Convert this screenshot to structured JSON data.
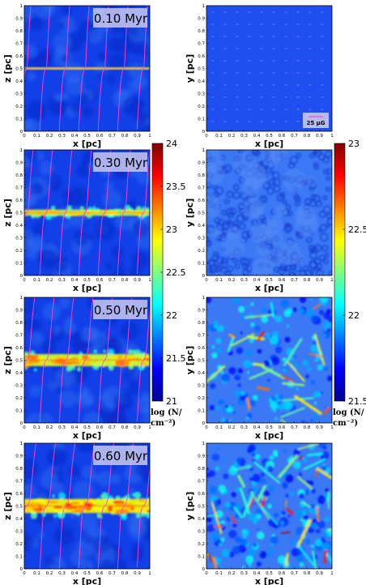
{
  "chart_data": [
    {
      "type": "heatmap",
      "view": "edge-on",
      "time_label": "0.10 Myr",
      "xlabel": "x [pc]",
      "ylabel": "z [pc]",
      "xticks": [
        "0",
        "0.1",
        "0.2",
        "0.3",
        "0.4",
        "0.5",
        "0.6",
        "0.7",
        "0.8",
        "0.9",
        "1"
      ],
      "yticks": [
        "0",
        "0.1",
        "0.2",
        "0.3",
        "0.4",
        "0.5",
        "0.6",
        "0.7",
        "0.8",
        "0.9",
        "1"
      ],
      "xlim": [
        0,
        1
      ],
      "ylim": [
        0,
        1
      ],
      "layer_center_z": 0.5,
      "layer_half_thickness": 0.005,
      "intensity": 0.0
    },
    {
      "type": "heatmap",
      "view": "face-on",
      "xlabel": "x [pc]",
      "ylabel": "y [pc]",
      "xticks": [
        "0",
        "0.1",
        "0.2",
        "0.3",
        "0.4",
        "0.5",
        "0.6",
        "0.7",
        "0.8",
        "0.9",
        "1"
      ],
      "yticks": [
        "0",
        "0.1",
        "0.2",
        "0.3",
        "0.4",
        "0.5",
        "0.6",
        "0.7",
        "0.8",
        "0.9",
        "1"
      ],
      "xlim": [
        0,
        1
      ],
      "ylim": [
        0,
        1
      ],
      "scale_bar_label": "25 μG",
      "intensity": 0.0
    },
    {
      "type": "heatmap",
      "view": "edge-on",
      "time_label": "0.30 Myr",
      "xlabel": "x [pc]",
      "ylabel": "z [pc]",
      "xticks": [
        "0",
        "0.1",
        "0.2",
        "0.3",
        "0.4",
        "0.5",
        "0.6",
        "0.7",
        "0.8",
        "0.9",
        "1"
      ],
      "yticks": [
        "0",
        "0.1",
        "0.2",
        "0.3",
        "0.4",
        "0.5",
        "0.6",
        "0.7",
        "0.8",
        "0.9",
        "1"
      ],
      "xlim": [
        0,
        1
      ],
      "ylim": [
        0,
        1
      ],
      "layer_center_z": 0.5,
      "layer_half_thickness": 0.03,
      "intensity": 0.35
    },
    {
      "type": "heatmap",
      "view": "face-on",
      "xlabel": "x [pc]",
      "ylabel": "y [pc]",
      "xticks": [
        "0",
        "0.1",
        "0.2",
        "0.3",
        "0.4",
        "0.5",
        "0.6",
        "0.7",
        "0.8",
        "0.9",
        "1"
      ],
      "yticks": [
        "0",
        "0.1",
        "0.2",
        "0.3",
        "0.4",
        "0.5",
        "0.6",
        "0.7",
        "0.8",
        "0.9",
        "1"
      ],
      "xlim": [
        0,
        1
      ],
      "ylim": [
        0,
        1
      ],
      "intensity": 0.3
    },
    {
      "type": "heatmap",
      "view": "edge-on",
      "time_label": "0.50 Myr",
      "xlabel": "x [pc]",
      "ylabel": "z [pc]",
      "xticks": [
        "0",
        "0.1",
        "0.2",
        "0.3",
        "0.4",
        "0.5",
        "0.6",
        "0.7",
        "0.8",
        "0.9",
        "1"
      ],
      "yticks": [
        "0",
        "0.1",
        "0.2",
        "0.3",
        "0.4",
        "0.5",
        "0.6",
        "0.7",
        "0.8",
        "0.9",
        "1"
      ],
      "xlim": [
        0,
        1
      ],
      "ylim": [
        0,
        1
      ],
      "layer_center_z": 0.5,
      "layer_half_thickness": 0.06,
      "intensity": 0.6
    },
    {
      "type": "heatmap",
      "view": "face-on",
      "xlabel": "x [pc]",
      "ylabel": "y [pc]",
      "xticks": [
        "0",
        "0.1",
        "0.2",
        "0.3",
        "0.4",
        "0.5",
        "0.6",
        "0.7",
        "0.8",
        "0.9",
        "1"
      ],
      "yticks": [
        "0",
        "0.1",
        "0.2",
        "0.3",
        "0.4",
        "0.5",
        "0.6",
        "0.7",
        "0.8",
        "0.9",
        "1"
      ],
      "xlim": [
        0,
        1
      ],
      "ylim": [
        0,
        1
      ],
      "intensity": 0.6
    },
    {
      "type": "heatmap",
      "view": "edge-on",
      "time_label": "0.60 Myr",
      "xlabel": "x [pc]",
      "ylabel": "z [pc]",
      "xticks": [
        "0",
        "0.1",
        "0.2",
        "0.3",
        "0.4",
        "0.5",
        "0.6",
        "0.7",
        "0.8",
        "0.9",
        "1"
      ],
      "yticks": [
        "0",
        "0.1",
        "0.2",
        "0.3",
        "0.4",
        "0.5",
        "0.6",
        "0.7",
        "0.8",
        "0.9",
        "1"
      ],
      "xlim": [
        0,
        1
      ],
      "ylim": [
        0,
        1
      ],
      "layer_center_z": 0.5,
      "layer_half_thickness": 0.07,
      "intensity": 0.8
    },
    {
      "type": "heatmap",
      "view": "face-on",
      "xlabel": "x [pc]",
      "ylabel": "y [pc]",
      "xticks": [
        "0",
        "0.1",
        "0.2",
        "0.3",
        "0.4",
        "0.5",
        "0.6",
        "0.7",
        "0.8",
        "0.9",
        "1"
      ],
      "yticks": [
        "0",
        "0.1",
        "0.2",
        "0.3",
        "0.4",
        "0.5",
        "0.6",
        "0.7",
        "0.8",
        "0.9",
        "1"
      ],
      "xlim": [
        0,
        1
      ],
      "ylim": [
        0,
        1
      ],
      "intensity": 0.9
    }
  ],
  "colorbars": [
    {
      "ticks": [
        "24",
        "23.5",
        "23",
        "22.5",
        "22",
        "21.5",
        "21"
      ],
      "range": [
        21,
        24
      ],
      "title_line1": "log (N/",
      "title_line2": "cm⁻²)",
      "colormap": "jet"
    },
    {
      "ticks": [
        "23",
        "22.5",
        "22",
        "21.5"
      ],
      "range": [
        21.5,
        23
      ],
      "title_line1": "log (N/",
      "title_line2": "cm⁻²)",
      "colormap": "jet"
    }
  ],
  "colors": {
    "field_lines": "#ff44cc",
    "low": "#00008f",
    "high": "#800000"
  }
}
